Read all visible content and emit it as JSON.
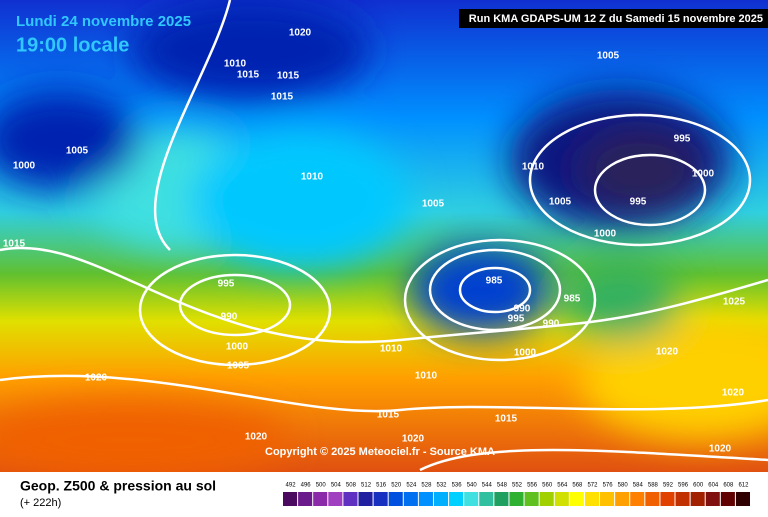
{
  "header": {
    "date": "Lundi 24 novembre 2025",
    "time": "19:00 locale",
    "run": "Run KMA GDAPS-UM 12 Z du Samedi 15 novembre 2025"
  },
  "copyright": "Copyright © 2025 Meteociel.fr - Source KMA",
  "footer": {
    "title": "Geop. Z500 & pression au sol",
    "lead": "(+ 222h)"
  },
  "legend": {
    "labels": [
      492,
      496,
      500,
      504,
      508,
      512,
      516,
      520,
      524,
      528,
      532,
      536,
      540,
      544,
      548,
      552,
      556,
      560,
      564,
      568,
      572,
      576,
      580,
      584,
      588,
      592,
      596,
      600,
      604,
      608,
      612
    ]
  },
  "isobars": [
    1020,
    1010,
    1015,
    1015,
    1015,
    1005,
    1005,
    1000,
    995,
    1010,
    1000,
    1010,
    1005,
    1005,
    995,
    1000,
    1015,
    995,
    985,
    990,
    985,
    990,
    995,
    990,
    1025,
    1000,
    1010,
    1000,
    1020,
    1005,
    1010,
    1020,
    1020,
    1015,
    1015,
    1020,
    1020,
    1020
  ]
}
